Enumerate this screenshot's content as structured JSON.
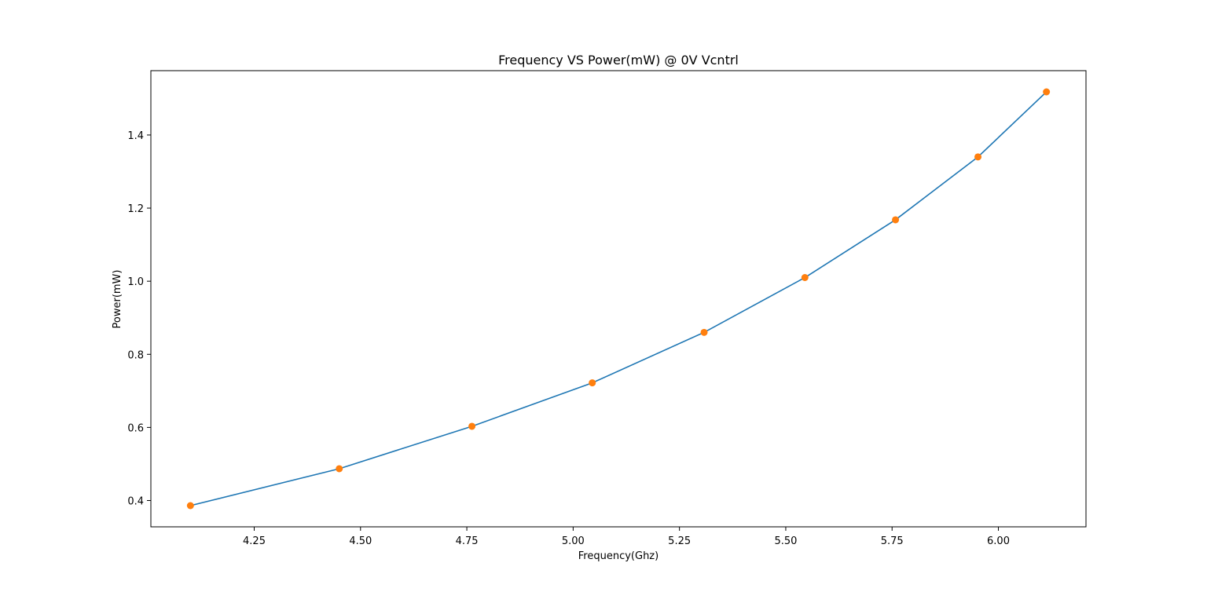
{
  "chart_data": {
    "type": "line",
    "title": "Frequency VS Power(mW) @ 0V Vcntrl",
    "xlabel": "Frequency(Ghz)",
    "ylabel": "Power(mW)",
    "x": [
      4.1,
      4.45,
      4.762,
      5.045,
      5.308,
      5.545,
      5.758,
      5.952,
      6.113
    ],
    "series": [
      {
        "values": [
          0.386,
          0.487,
          0.603,
          0.722,
          0.86,
          1.01,
          1.168,
          1.34,
          1.518
        ]
      }
    ],
    "xlim": [
      4.007,
      6.206
    ],
    "ylim": [
      0.328,
      1.576
    ],
    "xticks": [
      4.25,
      4.5,
      4.75,
      5.0,
      5.25,
      5.5,
      5.75,
      6.0
    ],
    "xtick_labels": [
      "4.25",
      "4.50",
      "4.75",
      "5.00",
      "5.25",
      "5.50",
      "5.75",
      "6.00"
    ],
    "yticks": [
      0.4,
      0.6,
      0.8,
      1.0,
      1.2,
      1.4
    ],
    "ytick_labels": [
      "0.4",
      "0.6",
      "0.8",
      "1.0",
      "1.2",
      "1.4"
    ],
    "grid": false,
    "colors": {
      "line": "#1f77b4",
      "marker": "#ff7f0e",
      "axes": "#000000"
    }
  }
}
